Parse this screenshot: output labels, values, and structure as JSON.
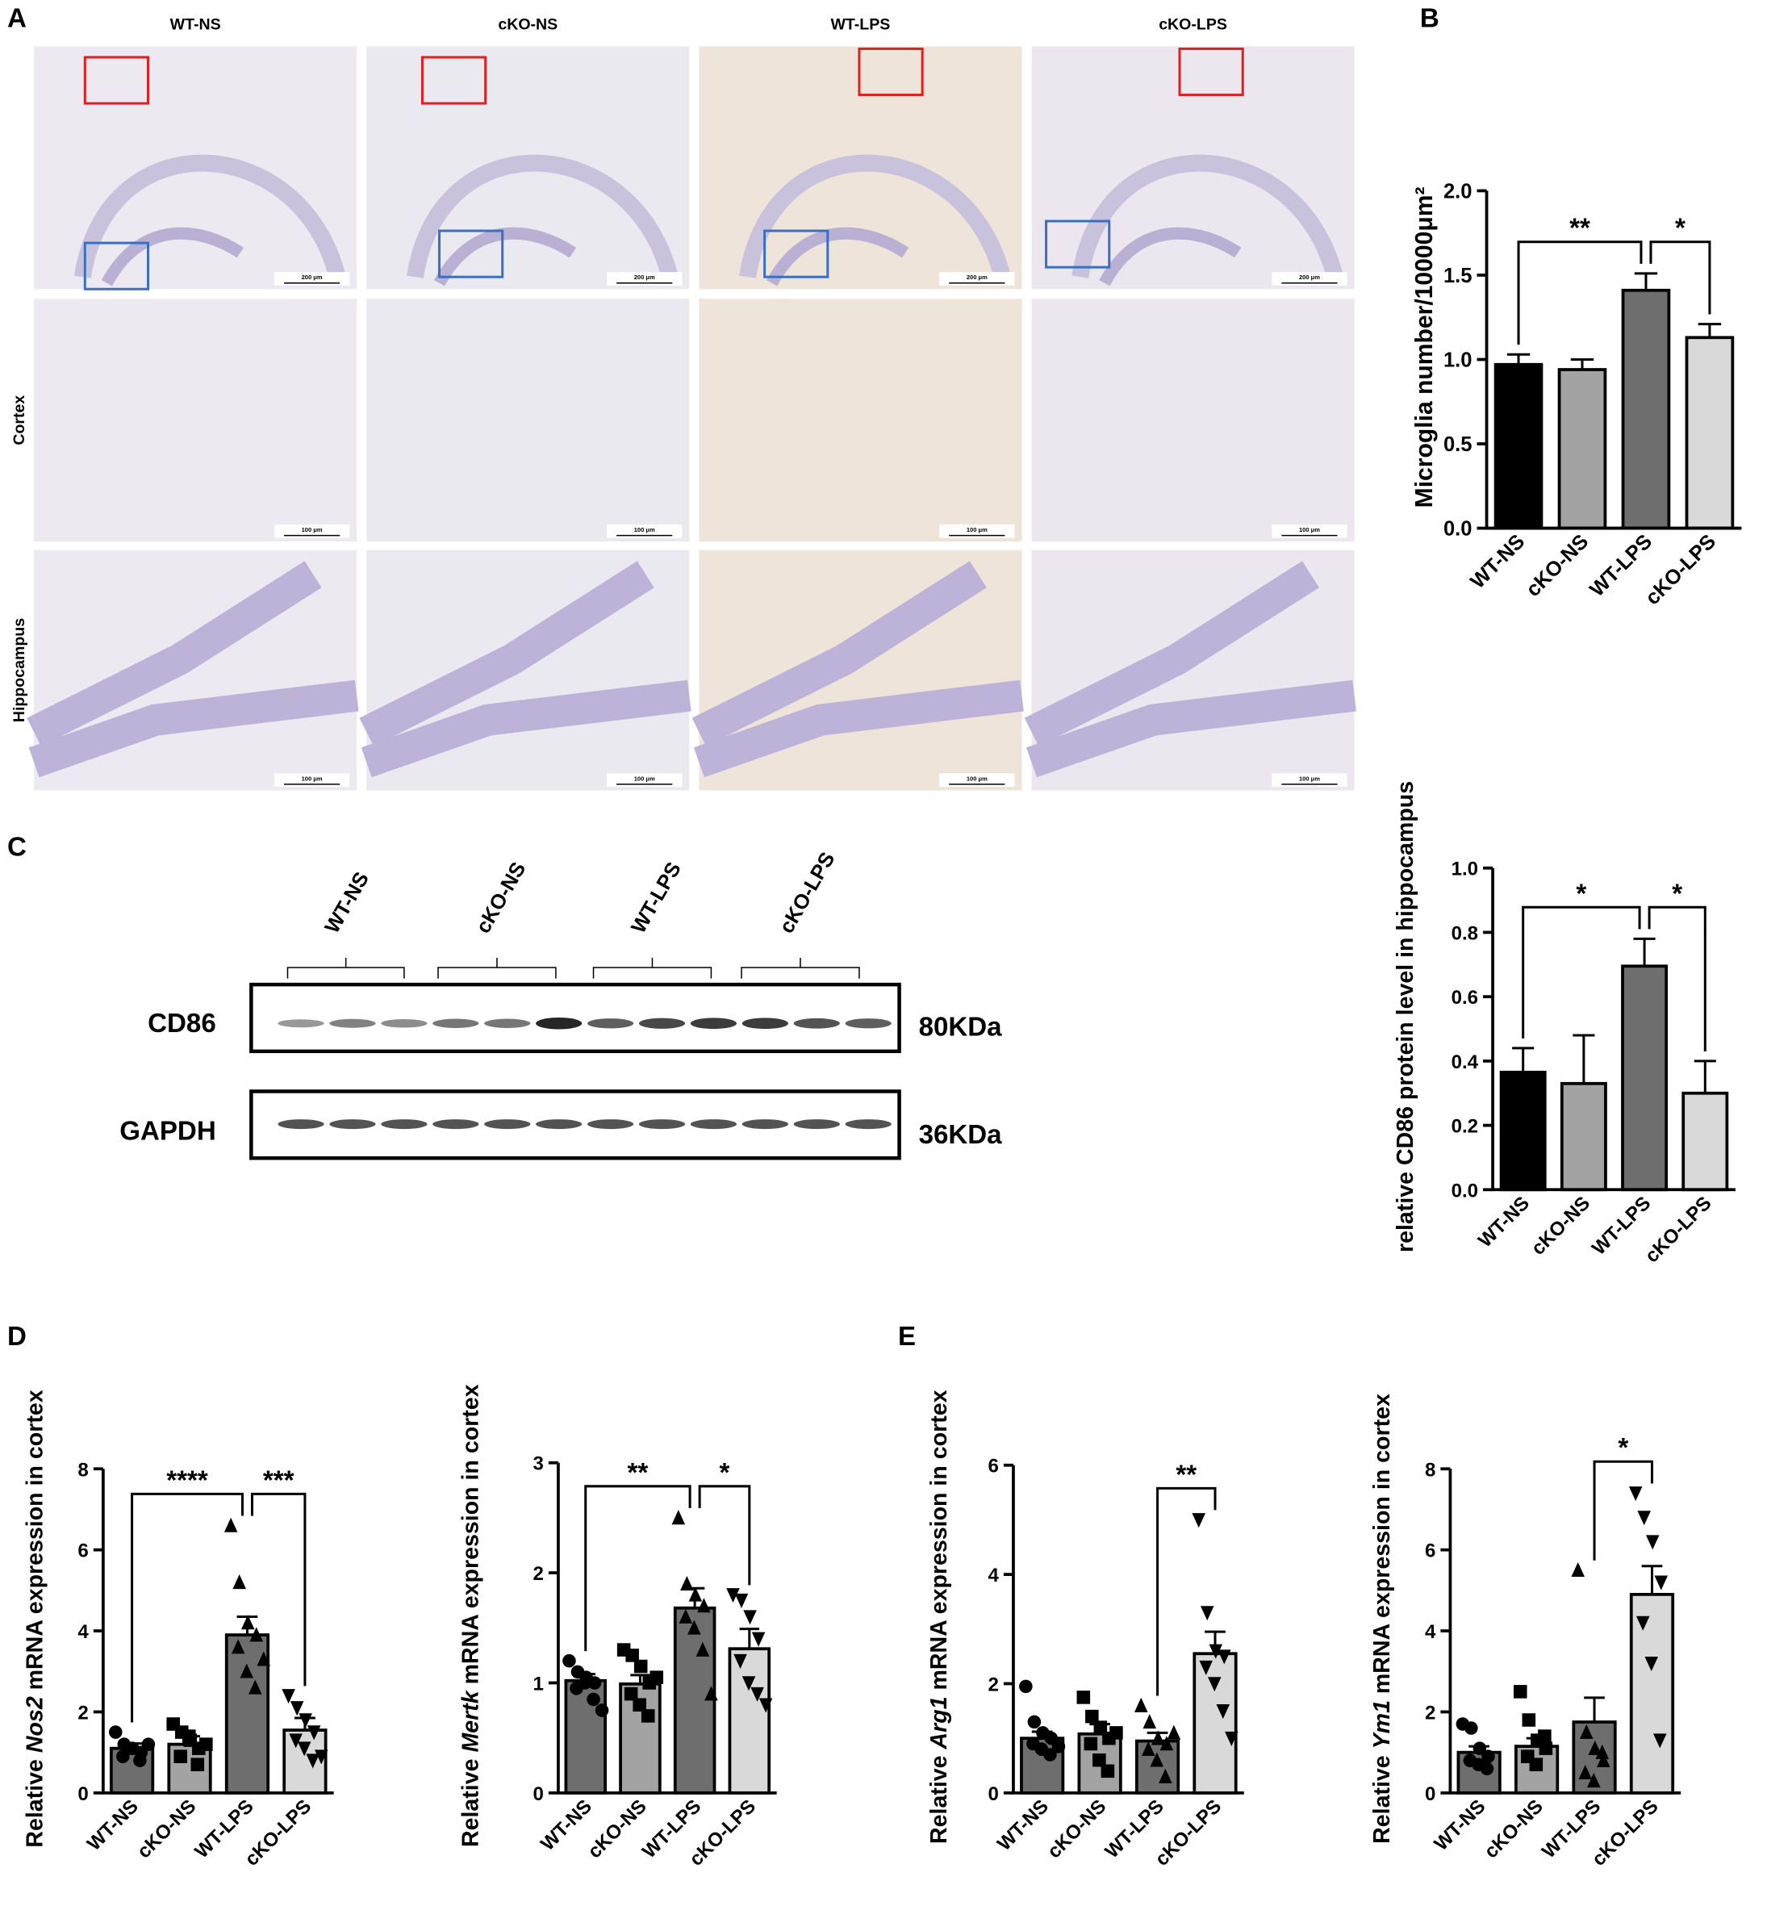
{
  "figure": {
    "panel_letters": [
      "A",
      "B",
      "C",
      "D",
      "E"
    ],
    "image_columns": [
      "WT-NS",
      "cKO-NS",
      "WT-LPS",
      "cKO-LPS"
    ],
    "image_rows": [
      "Cortex",
      "Hippocampus"
    ],
    "scale_bars": [
      "200 μm",
      "100 μm"
    ],
    "blot": {
      "lanes": [
        "WT-NS",
        "cKO-NS",
        "WT-LPS",
        "cKO-LPS"
      ],
      "bands": [
        {
          "protein": "CD86",
          "size": "80KDa"
        },
        {
          "protein": "GAPDH",
          "size": "36KDa"
        }
      ]
    }
  },
  "chart_data": [
    {
      "type": "bar",
      "ylabel": [
        "Microglia number/10000μm²"
      ],
      "categories": [
        "WT-NS",
        "cKO-NS",
        "WT-LPS",
        "cKO-LPS"
      ],
      "values": [
        0.97,
        0.94,
        1.41,
        1.13
      ],
      "errors": [
        0.06,
        0.06,
        0.1,
        0.08
      ],
      "colors": [
        "#000000",
        "#a3a3a3",
        "#6e6e6e",
        "#d9d9d9"
      ],
      "ylim": [
        0,
        2
      ],
      "yticks": [
        {
          "value": 0,
          "label": "0.0"
        },
        {
          "value": 0.5,
          "label": "0.5"
        },
        {
          "value": 1,
          "label": "1.0"
        },
        {
          "value": 1.5,
          "label": "1.5"
        },
        {
          "value": 2,
          "label": "2.0"
        }
      ],
      "significance": [
        {
          "between": [
            "WT-NS",
            "WT-LPS"
          ],
          "label": "**"
        },
        {
          "between": [
            "WT-LPS",
            "cKO-LPS"
          ],
          "label": "*"
        }
      ]
    },
    {
      "type": "bar",
      "ylabel": [
        "relative CD86 protein level in hippocampus"
      ],
      "categories": [
        "WT-NS",
        "cKO-NS",
        "WT-LPS",
        "cKO-LPS"
      ],
      "values": [
        0.365,
        0.33,
        0.695,
        0.3
      ],
      "errors": [
        0.075,
        0.15,
        0.085,
        0.1
      ],
      "colors": [
        "#000000",
        "#a3a3a3",
        "#6e6e6e",
        "#d9d9d9"
      ],
      "ylim": [
        0,
        1
      ],
      "yticks": [
        {
          "value": 0,
          "label": "0.0"
        },
        {
          "value": 0.2,
          "label": "0.2"
        },
        {
          "value": 0.4,
          "label": "0.4"
        },
        {
          "value": 0.6,
          "label": "0.6"
        },
        {
          "value": 0.8,
          "label": "0.8"
        },
        {
          "value": 1,
          "label": "1.0"
        }
      ],
      "significance": [
        {
          "between": [
            "WT-NS",
            "WT-LPS"
          ],
          "label": "*"
        },
        {
          "between": [
            "WT-LPS",
            "cKO-LPS"
          ],
          "label": "*"
        }
      ]
    },
    {
      "type": "bar",
      "ylabel": [
        "Relative ",
        "Nos2",
        " mRNA expression in cortex"
      ],
      "categories": [
        "WT-NS",
        "cKO-NS",
        "WT-LPS",
        "cKO-LPS"
      ],
      "values": [
        1.1,
        1.2,
        3.9,
        1.55
      ],
      "errors": [
        0.12,
        0.2,
        0.45,
        0.3
      ],
      "colors": [
        "#6e6e6e",
        "#a3a3a3",
        "#6e6e6e",
        "#d9d9d9"
      ],
      "markers": [
        "circle",
        "square",
        "triangle-up",
        "triangle-down"
      ],
      "points": [
        [
          1.5,
          1.2,
          1.1,
          1.0,
          0.9,
          1.1,
          0.8,
          1.2
        ],
        [
          1.7,
          1.5,
          1.3,
          1.1,
          0.9,
          1.4,
          0.7,
          1.2
        ],
        [
          6.6,
          5.2,
          4.2,
          3.9,
          3.6,
          3.0,
          2.6,
          3.3
        ],
        [
          2.4,
          2.1,
          1.8,
          1.5,
          1.3,
          1.1,
          0.8,
          0.9
        ]
      ],
      "ylim": [
        0,
        8
      ],
      "yticks": [
        0,
        2,
        4,
        6,
        8
      ],
      "significance": [
        {
          "between": [
            "WT-NS",
            "WT-LPS"
          ],
          "label": "****"
        },
        {
          "between": [
            "WT-LPS",
            "cKO-LPS"
          ],
          "label": "***"
        }
      ]
    },
    {
      "type": "bar",
      "ylabel": [
        "Relative ",
        "Mertk",
        " mRNA expression in cortex"
      ],
      "categories": [
        "WT-NS",
        "cKO-NS",
        "WT-LPS",
        "cKO-LPS"
      ],
      "values": [
        1.02,
        0.99,
        1.68,
        1.31
      ],
      "errors": [
        0.06,
        0.08,
        0.18,
        0.18
      ],
      "colors": [
        "#6e6e6e",
        "#a3a3a3",
        "#6e6e6e",
        "#d9d9d9"
      ],
      "markers": [
        "circle",
        "square",
        "triangle-up",
        "triangle-down"
      ],
      "points": [
        [
          1.2,
          1.1,
          1.05,
          1.0,
          0.95,
          1.0,
          0.85,
          0.75
        ],
        [
          1.3,
          1.25,
          1.15,
          1.0,
          0.9,
          0.8,
          0.7,
          1.05
        ],
        [
          2.5,
          1.9,
          1.8,
          1.7,
          1.6,
          1.5,
          1.3,
          0.9
        ],
        [
          1.8,
          1.75,
          1.6,
          1.4,
          1.2,
          1.0,
          0.9,
          0.8
        ]
      ],
      "ylim": [
        0,
        3
      ],
      "yticks": [
        0,
        1,
        2,
        3
      ],
      "significance": [
        {
          "between": [
            "WT-NS",
            "WT-LPS"
          ],
          "label": "**"
        },
        {
          "between": [
            "WT-LPS",
            "cKO-LPS"
          ],
          "label": "*"
        }
      ]
    },
    {
      "type": "bar",
      "ylabel": [
        "Relative ",
        "Arg1",
        " mRNA expression in cortex"
      ],
      "categories": [
        "WT-NS",
        "cKO-NS",
        "WT-LPS",
        "cKO-LPS"
      ],
      "values": [
        1.0,
        1.08,
        0.95,
        2.55
      ],
      "errors": [
        0.12,
        0.18,
        0.15,
        0.4
      ],
      "colors": [
        "#6e6e6e",
        "#a3a3a3",
        "#6e6e6e",
        "#d9d9d9"
      ],
      "markers": [
        "circle",
        "square",
        "triangle-up",
        "triangle-down"
      ],
      "points": [
        [
          1.95,
          1.3,
          1.1,
          1.0,
          0.9,
          0.8,
          0.7,
          0.85
        ],
        [
          1.75,
          1.4,
          1.2,
          1.0,
          0.9,
          0.6,
          0.4,
          1.1
        ],
        [
          1.6,
          1.3,
          1.0,
          0.9,
          0.8,
          0.6,
          0.3,
          1.1
        ],
        [
          5.0,
          3.3,
          2.6,
          2.5,
          2.3,
          2.0,
          1.5,
          1.0
        ]
      ],
      "ylim": [
        0,
        6
      ],
      "yticks": [
        0,
        2,
        4,
        6
      ],
      "significance": [
        {
          "between": [
            "WT-LPS",
            "cKO-LPS"
          ],
          "label": "**"
        }
      ]
    },
    {
      "type": "bar",
      "ylabel": [
        "Relative ",
        "Ym1",
        " mRNA expression in cortex"
      ],
      "categories": [
        "WT-NS",
        "cKO-NS",
        "WT-LPS",
        "cKO-LPS"
      ],
      "values": [
        1.0,
        1.15,
        1.75,
        4.9
      ],
      "errors": [
        0.15,
        0.2,
        0.6,
        0.7
      ],
      "colors": [
        "#6e6e6e",
        "#a3a3a3",
        "#6e6e6e",
        "#d9d9d9"
      ],
      "markers": [
        "circle",
        "square",
        "triangle-up",
        "triangle-down"
      ],
      "points": [
        [
          1.7,
          1.6,
          1.1,
          0.9,
          0.8,
          0.7,
          0.6
        ],
        [
          2.5,
          1.8,
          1.3,
          1.1,
          0.9,
          0.7,
          1.4
        ],
        [
          5.5,
          1.5,
          1.1,
          0.8,
          0.5,
          0.3,
          1.0
        ],
        [
          7.4,
          6.8,
          6.2,
          5.2,
          4.2,
          3.2,
          1.3
        ]
      ],
      "ylim": [
        0,
        8
      ],
      "yticks": [
        0,
        2,
        4,
        6,
        8
      ],
      "significance": [
        {
          "between": [
            "WT-LPS",
            "cKO-LPS"
          ],
          "label": "*"
        }
      ]
    }
  ]
}
